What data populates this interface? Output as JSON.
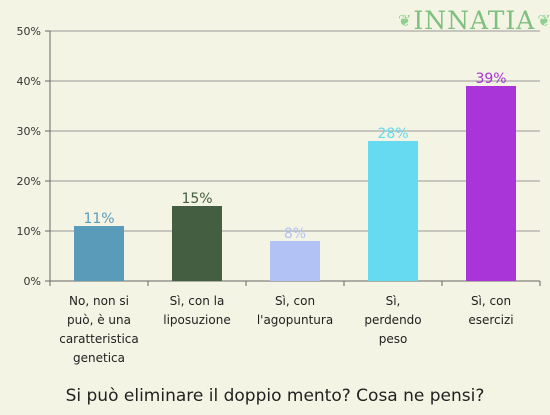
{
  "logo": {
    "text": "INNATIA"
  },
  "chart_data": {
    "type": "bar",
    "title": "Si può eliminare il doppio mento? Cosa ne pensi?",
    "xlabel": "",
    "ylabel": "",
    "ylim": [
      0,
      50
    ],
    "yticks": [
      "0%",
      "10%",
      "20%",
      "30%",
      "40%",
      "50%"
    ],
    "categories": [
      [
        "No, non si",
        "può, è una",
        "caratteristica",
        "genetica"
      ],
      [
        "Sì, con la",
        "liposuzione"
      ],
      [
        "Sì, con",
        "l'agopuntura"
      ],
      [
        "Sì,",
        "perdendo",
        "peso"
      ],
      [
        "Sì, con",
        "esercizi"
      ]
    ],
    "values": [
      11,
      15,
      8,
      28,
      39
    ],
    "value_labels": [
      "11%",
      "15%",
      "8%",
      "28%",
      "39%"
    ],
    "colors": [
      "#5b9bba",
      "#435e40",
      "#b3c2f4",
      "#66daf0",
      "#a934d8"
    ],
    "label_colors": [
      "#5b9bba",
      "#435e40",
      "#b3c2f4",
      "#66daf0",
      "#a934d8"
    ],
    "grid": true
  }
}
